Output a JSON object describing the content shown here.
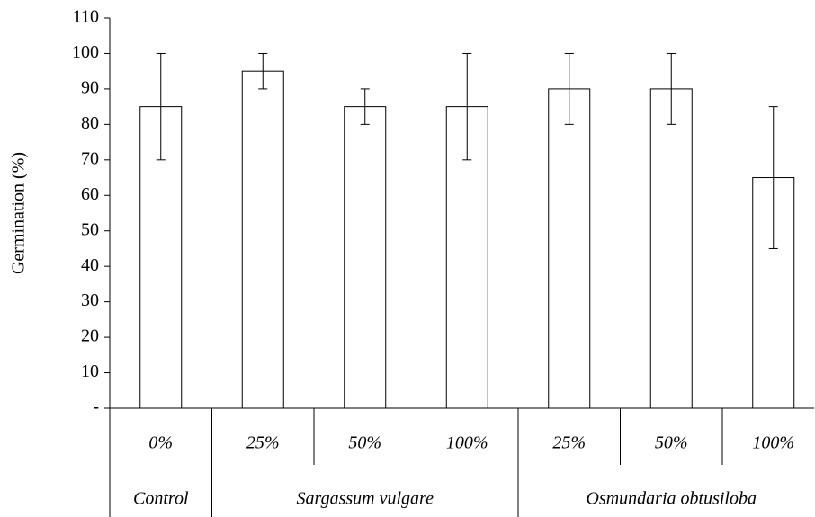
{
  "chart_data": {
    "type": "bar",
    "y_label": "Germination (%)",
    "categories": [
      "0%",
      "25%",
      "50%",
      "100%",
      "25%",
      "50%",
      "100%"
    ],
    "values": [
      85,
      95,
      85,
      85,
      90,
      90,
      65
    ],
    "errors": [
      15,
      5,
      5,
      15,
      10,
      10,
      20
    ],
    "groups": [
      {
        "label": "Control",
        "span": 1
      },
      {
        "label": "Sargassum vulgare",
        "span": 3
      },
      {
        "label": "Osmundaria obtusiloba",
        "span": 3
      }
    ],
    "color": "#ffffff",
    "ylim": [
      0,
      110
    ],
    "yticks": [
      {
        "value": 0,
        "label": "-"
      },
      10,
      20,
      30,
      40,
      50,
      60,
      70,
      80,
      90,
      100,
      110
    ],
    "grid": false
  }
}
